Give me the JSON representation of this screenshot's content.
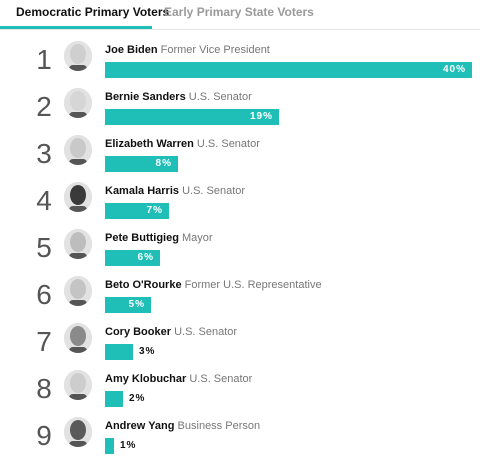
{
  "tabs": [
    {
      "label": "Democratic Primary Voters",
      "active": true
    },
    {
      "label": "Early Primary State Voters",
      "active": false
    }
  ],
  "accent_color": "#1fbfb8",
  "candidates": [
    {
      "rank": "1",
      "name": "Joe Biden",
      "title": "Former Vice President",
      "pct": 40,
      "pct_label": "40%",
      "avatar": "photo-joe-biden"
    },
    {
      "rank": "2",
      "name": "Bernie Sanders",
      "title": "U.S. Senator",
      "pct": 19,
      "pct_label": "19%",
      "avatar": "photo-bernie-sanders"
    },
    {
      "rank": "3",
      "name": "Elizabeth Warren",
      "title": "U.S. Senator",
      "pct": 8,
      "pct_label": "8%",
      "avatar": "photo-elizabeth-warren"
    },
    {
      "rank": "4",
      "name": "Kamala Harris",
      "title": "U.S. Senator",
      "pct": 7,
      "pct_label": "7%",
      "avatar": "photo-kamala-harris"
    },
    {
      "rank": "5",
      "name": "Pete Buttigieg",
      "title": "Mayor",
      "pct": 6,
      "pct_label": "6%",
      "avatar": "photo-pete-buttigieg"
    },
    {
      "rank": "6",
      "name": "Beto O'Rourke",
      "title": "Former U.S. Representative",
      "pct": 5,
      "pct_label": "5%",
      "avatar": "photo-beto-orourke"
    },
    {
      "rank": "7",
      "name": "Cory Booker",
      "title": "U.S. Senator",
      "pct": 3,
      "pct_label": "3%",
      "avatar": "photo-cory-booker"
    },
    {
      "rank": "8",
      "name": "Amy Klobuchar",
      "title": "U.S. Senator",
      "pct": 2,
      "pct_label": "2%",
      "avatar": "photo-amy-klobuchar"
    },
    {
      "rank": "9",
      "name": "Andrew Yang",
      "title": "Business Person",
      "pct": 1,
      "pct_label": "1%",
      "avatar": "photo-andrew-yang"
    }
  ]
}
